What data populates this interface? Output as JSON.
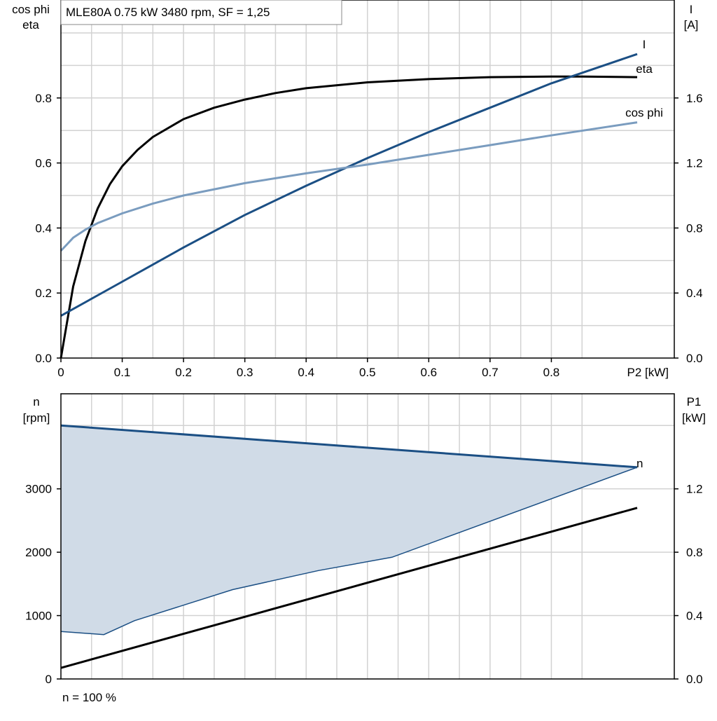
{
  "chart_data": [
    {
      "type": "line",
      "title": "MLE80A   0.75 kW   3480 rpm, SF = 1,25",
      "xlabel": "P2 [kW]",
      "xlim": [
        0,
        0.9
      ],
      "x_ticks": [
        "0",
        "0.1",
        "0.2",
        "0.3",
        "0.4",
        "0.5",
        "0.6",
        "0.7",
        "0.8"
      ],
      "y_left_label": [
        "cos phi",
        "eta"
      ],
      "y_left_lim": [
        0,
        1.0
      ],
      "y_left_ticks": [
        "0.0",
        "0.2",
        "0.4",
        "0.6",
        "0.8"
      ],
      "y_right_label": [
        "I",
        "[A]"
      ],
      "y_right_lim": [
        0,
        2.0
      ],
      "y_right_ticks": [
        "0.0",
        "0.4",
        "0.8",
        "1.2",
        "1.6"
      ],
      "grid": true,
      "colors": {
        "eta": "#000000",
        "I": "#1b4f84",
        "cos_phi": "#7a9cbf"
      },
      "series": [
        {
          "name": "eta",
          "axis": "left",
          "x": [
            0,
            0.02,
            0.04,
            0.06,
            0.08,
            0.1,
            0.125,
            0.15,
            0.2,
            0.25,
            0.3,
            0.35,
            0.4,
            0.5,
            0.6,
            0.7,
            0.8,
            0.85,
            0.94
          ],
          "y": [
            0.0,
            0.22,
            0.36,
            0.46,
            0.535,
            0.59,
            0.64,
            0.68,
            0.735,
            0.77,
            0.795,
            0.815,
            0.83,
            0.848,
            0.858,
            0.864,
            0.866,
            0.866,
            0.864
          ]
        },
        {
          "name": "I",
          "axis": "right",
          "x": [
            0,
            0.1,
            0.2,
            0.3,
            0.4,
            0.5,
            0.6,
            0.7,
            0.8,
            0.94
          ],
          "y": [
            0.26,
            0.47,
            0.68,
            0.88,
            1.06,
            1.23,
            1.39,
            1.54,
            1.69,
            1.87
          ]
        },
        {
          "name": "cos phi",
          "axis": "left",
          "x": [
            0,
            0.01,
            0.02,
            0.04,
            0.06,
            0.08,
            0.1,
            0.15,
            0.2,
            0.3,
            0.4,
            0.5,
            0.6,
            0.7,
            0.8,
            0.94
          ],
          "y": [
            0.33,
            0.35,
            0.37,
            0.395,
            0.415,
            0.43,
            0.445,
            0.475,
            0.5,
            0.538,
            0.568,
            0.595,
            0.625,
            0.655,
            0.685,
            0.725
          ]
        }
      ]
    },
    {
      "type": "area",
      "xlim": [
        0,
        0.9
      ],
      "y_left_label": [
        "n",
        "[rpm]"
      ],
      "y_left_lim": [
        0,
        4500
      ],
      "y_left_ticks": [
        "0",
        "1000",
        "2000",
        "3000"
      ],
      "y_right_label": [
        "P1",
        "[kW]"
      ],
      "y_right_lim": [
        0,
        1.8
      ],
      "y_right_ticks": [
        "0.0",
        "0.4",
        "0.8",
        "1.2"
      ],
      "grid": true,
      "colors": {
        "n": "#1b4f84",
        "band_fill": "#d0dbe7",
        "P1": "#000000"
      },
      "footer": "n = 100 %",
      "series": [
        {
          "name": "n",
          "axis": "left",
          "x": [
            0,
            0.94
          ],
          "y": [
            4000,
            3340
          ]
        },
        {
          "axis": "left",
          "role": "lower-boundary",
          "x": [
            0,
            0.07,
            0.12,
            0.28,
            0.42,
            0.54,
            0.94
          ],
          "y": [
            750,
            700,
            920,
            1410,
            1710,
            1920,
            3340
          ]
        },
        {
          "name": "P1",
          "axis": "right",
          "x": [
            0,
            0.94
          ],
          "y": [
            0.07,
            1.08
          ]
        }
      ]
    }
  ]
}
